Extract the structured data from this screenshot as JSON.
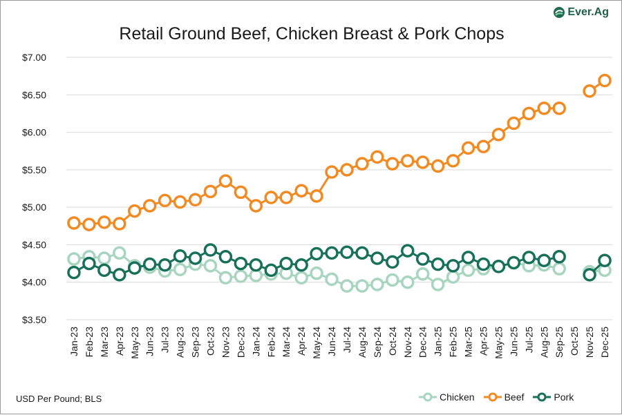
{
  "brand": {
    "name": "Ever.Ag",
    "color": "#1f6b52"
  },
  "footer": {
    "source": "USD Per Pound; BLS"
  },
  "chart_data": {
    "type": "line",
    "title": "Retail Ground Beef, Chicken Breast & Pork Chops",
    "xlabel": "",
    "ylabel": "",
    "ylim": [
      3.5,
      7.0
    ],
    "yticks": [
      "$3.50",
      "$4.00",
      "$4.50",
      "$5.00",
      "$5.50",
      "$6.00",
      "$6.50",
      "$7.00"
    ],
    "ytick_values": [
      3.5,
      4.0,
      4.5,
      5.0,
      5.5,
      6.0,
      6.5,
      7.0
    ],
    "grid": true,
    "legend_position": "bottom-right",
    "categories": [
      "Jan-23",
      "Feb-23",
      "Mar-23",
      "Apr-23",
      "May-23",
      "Jun-23",
      "Jul-23",
      "Aug-23",
      "Sep-23",
      "Oct-23",
      "Nov-23",
      "Dec-23",
      "Jan-24",
      "Feb-24",
      "Mar-24",
      "Apr-24",
      "May-24",
      "Jun-24",
      "Jul-24",
      "Aug-24",
      "Sep-24",
      "Oct-24",
      "Nov-24",
      "Dec-24",
      "Jan-25",
      "Feb-25",
      "Mar-25",
      "Apr-25",
      "May-25",
      "Jun-25",
      "Jul-25",
      "Aug-25",
      "Sep-25",
      "Oct-25",
      "Nov-25",
      "Dec-25"
    ],
    "series": [
      {
        "name": "Chicken",
        "color": "#a8d5bf",
        "values": [
          4.31,
          4.34,
          4.32,
          4.39,
          4.22,
          4.2,
          4.15,
          4.17,
          4.24,
          4.22,
          4.06,
          4.08,
          4.09,
          4.11,
          4.12,
          4.06,
          4.12,
          4.04,
          3.95,
          3.95,
          3.97,
          4.03,
          4.0,
          4.11,
          3.97,
          4.07,
          4.16,
          4.18,
          4.21,
          4.26,
          4.22,
          4.23,
          4.18,
          null,
          4.14,
          4.16
        ]
      },
      {
        "name": "Beef",
        "color": "#f28a22",
        "values": [
          4.79,
          4.77,
          4.8,
          4.78,
          4.95,
          5.02,
          5.09,
          5.07,
          5.1,
          5.21,
          5.35,
          5.2,
          5.02,
          5.13,
          5.13,
          5.22,
          5.15,
          5.47,
          5.5,
          5.58,
          5.67,
          5.58,
          5.62,
          5.6,
          5.55,
          5.62,
          5.79,
          5.81,
          5.97,
          6.12,
          6.25,
          6.32,
          6.32,
          null,
          6.55,
          6.69
        ]
      },
      {
        "name": "Pork",
        "color": "#17705a",
        "values": [
          4.13,
          4.25,
          4.16,
          4.1,
          4.19,
          4.24,
          4.23,
          4.35,
          4.32,
          4.43,
          4.34,
          4.25,
          4.23,
          4.16,
          4.25,
          4.23,
          4.38,
          4.39,
          4.4,
          4.39,
          4.32,
          4.27,
          4.42,
          4.31,
          4.24,
          4.22,
          4.33,
          4.24,
          4.21,
          4.26,
          4.33,
          4.29,
          4.34,
          null,
          4.1,
          4.29
        ]
      }
    ]
  }
}
